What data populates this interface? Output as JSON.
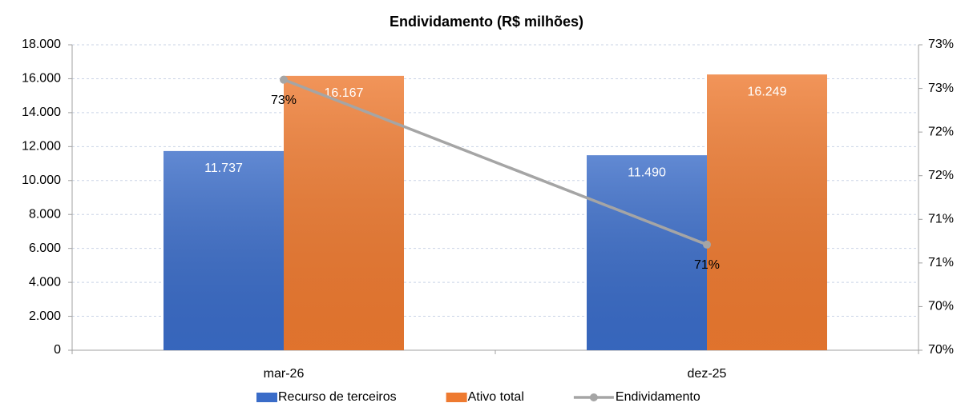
{
  "chart_data": {
    "type": "bar_line",
    "title": "Endividamento (R$ milhões)",
    "categories": [
      "mar-26",
      "dez-25"
    ],
    "series": [
      {
        "name": "Recurso de terceiros",
        "color": "#3a6cc8",
        "values": [
          11737,
          11490
        ],
        "value_labels": [
          "11.737",
          "11.490"
        ]
      },
      {
        "name": "Ativo total",
        "color": "#ee7a30",
        "values": [
          16167,
          16249
        ],
        "value_labels": [
          "16.167",
          "16.249"
        ]
      },
      {
        "name": "Endividamento",
        "type": "line",
        "axis": "y2",
        "color": "#a5a5a5",
        "values": [
          72.6,
          70.71
        ],
        "value_labels": [
          "73%",
          "71%"
        ]
      }
    ],
    "ylim": [
      0,
      18000
    ],
    "yticks": [
      0,
      {
        "value": 2000,
        "label": "2.000"
      },
      {
        "value": 4000,
        "label": "4.000"
      },
      {
        "value": 6000,
        "label": "6.000"
      },
      {
        "value": 8000,
        "label": "8.000"
      },
      {
        "value": 10000,
        "label": "10.000"
      },
      {
        "value": 12000,
        "label": "12.000"
      },
      {
        "value": 14000,
        "label": "14.000"
      },
      {
        "value": 16000,
        "label": "16.000"
      },
      {
        "value": 18000,
        "label": "18.000"
      }
    ],
    "y2lim": [
      69.5,
      73
    ],
    "y2ticks": [
      {
        "value": 69.5,
        "label": "70%"
      },
      {
        "value": 70,
        "label": "70%"
      },
      {
        "value": 70.5,
        "label": "71%"
      },
      {
        "value": 71,
        "label": "71%"
      },
      {
        "value": 71.5,
        "label": "72%"
      },
      {
        "value": 72,
        "label": "72%"
      },
      {
        "value": 72.5,
        "label": "73%"
      },
      {
        "value": 73,
        "label": "73%"
      }
    ],
    "grid": true,
    "legend": "bottom"
  }
}
